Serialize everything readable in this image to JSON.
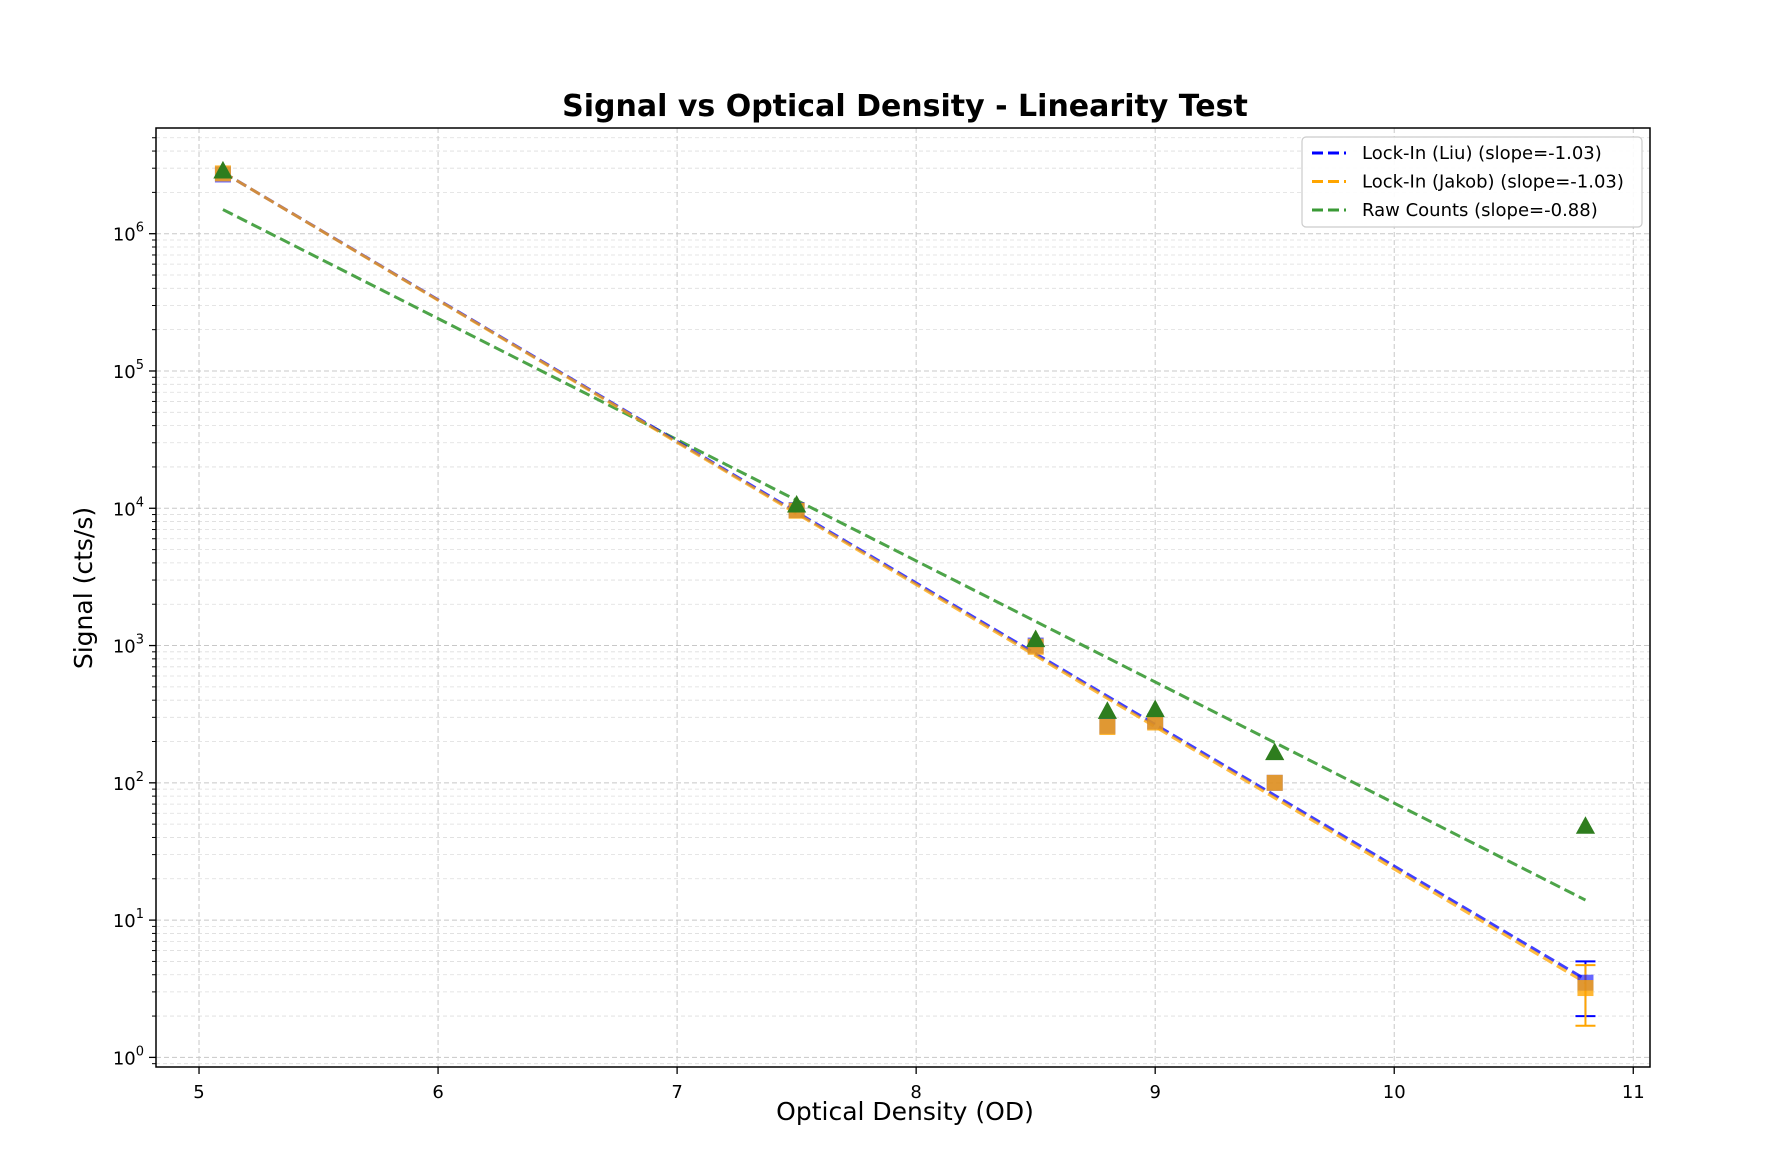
{
  "chart_data": {
    "type": "scatter",
    "title": "Signal vs Optical Density - Linearity Test",
    "xlabel": "Optical Density (OD)",
    "ylabel": "Signal (cts/s)",
    "xlim": [
      4.82,
      11.07
    ],
    "ylim_log10": [
      -0.07,
      6.77
    ],
    "y_scale": "log",
    "grid": true,
    "legend_position": "top-right",
    "x_ticks": [
      5,
      6,
      7,
      8,
      9,
      10,
      11
    ],
    "y_tick_exponents": [
      0,
      1,
      2,
      3,
      4,
      5,
      6
    ],
    "series": [
      {
        "name": "Lock-In (Liu)",
        "legend_label": "Lock-In (Liu) (slope=-1.03)",
        "color": "#0000ff",
        "marker": "square",
        "x": [
          5.1,
          7.5,
          8.5,
          8.8,
          9.0,
          9.5,
          10.8
        ],
        "y": [
          2700000,
          9700,
          1000,
          260,
          280,
          100,
          3.5
        ],
        "y_err_low": [
          0,
          0,
          0,
          0,
          0,
          0,
          1.5
        ],
        "y_err_high": [
          0,
          0,
          0,
          0,
          0,
          0,
          1.5
        ],
        "fit": {
          "slope": -1.03,
          "x": [
            5.1,
            10.8
          ],
          "y": [
            2800000,
            3.7
          ]
        }
      },
      {
        "name": "Lock-In (Jakob)",
        "legend_label": "Lock-In (Jakob) (slope=-1.03)",
        "color": "#ffa500",
        "marker": "square",
        "x": [
          5.1,
          7.5,
          8.5,
          8.8,
          9.0,
          9.5,
          10.8
        ],
        "y": [
          2750000,
          9600,
          980,
          255,
          275,
          100,
          3.2
        ],
        "y_err_low": [
          0,
          0,
          0,
          0,
          0,
          0,
          1.5
        ],
        "y_err_high": [
          0,
          0,
          0,
          0,
          0,
          0,
          1.5
        ],
        "fit": {
          "slope": -1.03,
          "x": [
            5.1,
            10.8
          ],
          "y": [
            2800000,
            3.5
          ]
        }
      },
      {
        "name": "Raw Counts",
        "legend_label": "Raw Counts (slope=-0.88)",
        "color": "#2e7d1e",
        "fit_color": "#3a9a35",
        "marker": "triangle",
        "x": [
          5.1,
          7.5,
          8.5,
          8.8,
          9.0,
          9.5,
          10.8
        ],
        "y": [
          2850000,
          10500,
          1100,
          330,
          340,
          165,
          48
        ],
        "fit": {
          "slope": -0.88,
          "x": [
            5.1,
            10.8
          ],
          "y": [
            1500000,
            14
          ]
        }
      }
    ]
  }
}
